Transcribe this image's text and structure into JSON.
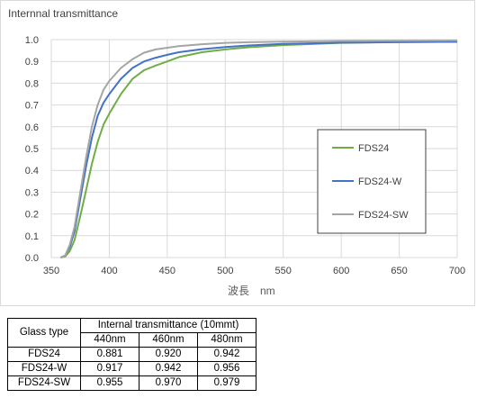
{
  "chart_data": {
    "type": "line",
    "title": "Internnal transmittance",
    "xlabel": "波長　nm",
    "ylabel": "",
    "xlim": [
      350,
      700
    ],
    "ylim": [
      0.0,
      1.0
    ],
    "xticks": [
      350,
      400,
      450,
      500,
      550,
      600,
      650,
      700
    ],
    "yticks": [
      "0.0",
      "0.1",
      "0.2",
      "0.3",
      "0.4",
      "0.5",
      "0.6",
      "0.7",
      "0.8",
      "0.9",
      "1.0"
    ],
    "grid": true,
    "legend_position": "right",
    "series": [
      {
        "name": "FDS24",
        "color": "#70ad47",
        "x": [
          358,
          362,
          366,
          370,
          375,
          380,
          385,
          390,
          395,
          400,
          410,
          420,
          430,
          440,
          450,
          460,
          480,
          500,
          520,
          550,
          600,
          650,
          700
        ],
        "y": [
          0.0,
          0.005,
          0.03,
          0.08,
          0.19,
          0.31,
          0.43,
          0.53,
          0.61,
          0.66,
          0.75,
          0.82,
          0.86,
          0.881,
          0.9,
          0.92,
          0.942,
          0.955,
          0.965,
          0.975,
          0.985,
          0.989,
          0.99
        ]
      },
      {
        "name": "FDS24-W",
        "color": "#4472c4",
        "x": [
          358,
          362,
          366,
          370,
          375,
          380,
          385,
          390,
          395,
          400,
          410,
          420,
          430,
          440,
          450,
          460,
          480,
          500,
          520,
          550,
          600,
          650,
          700
        ],
        "y": [
          0.0,
          0.01,
          0.05,
          0.12,
          0.27,
          0.42,
          0.55,
          0.65,
          0.71,
          0.75,
          0.82,
          0.87,
          0.9,
          0.917,
          0.93,
          0.942,
          0.956,
          0.966,
          0.973,
          0.98,
          0.986,
          0.989,
          0.99
        ]
      },
      {
        "name": "FDS24-SW",
        "color": "#a5a5a5",
        "x": [
          358,
          362,
          366,
          370,
          375,
          380,
          385,
          390,
          395,
          400,
          410,
          420,
          430,
          440,
          450,
          460,
          480,
          500,
          520,
          550,
          600,
          650,
          700
        ],
        "y": [
          0.0,
          0.01,
          0.06,
          0.14,
          0.3,
          0.46,
          0.6,
          0.7,
          0.77,
          0.81,
          0.87,
          0.91,
          0.94,
          0.955,
          0.963,
          0.97,
          0.979,
          0.985,
          0.988,
          0.991,
          0.994,
          0.995,
          0.996
        ]
      }
    ]
  },
  "table": {
    "col_glass": "Glass type",
    "col_group": "Internal transmittance (10mmt)",
    "sub_headers": [
      "440nm",
      "460nm",
      "480nm"
    ],
    "rows": [
      {
        "glass": "FDS24",
        "values": [
          "0.881",
          "0.920",
          "0.942"
        ]
      },
      {
        "glass": "FDS24-W",
        "values": [
          "0.917",
          "0.942",
          "0.956"
        ]
      },
      {
        "glass": "FDS24-SW",
        "values": [
          "0.955",
          "0.970",
          "0.979"
        ]
      }
    ]
  }
}
